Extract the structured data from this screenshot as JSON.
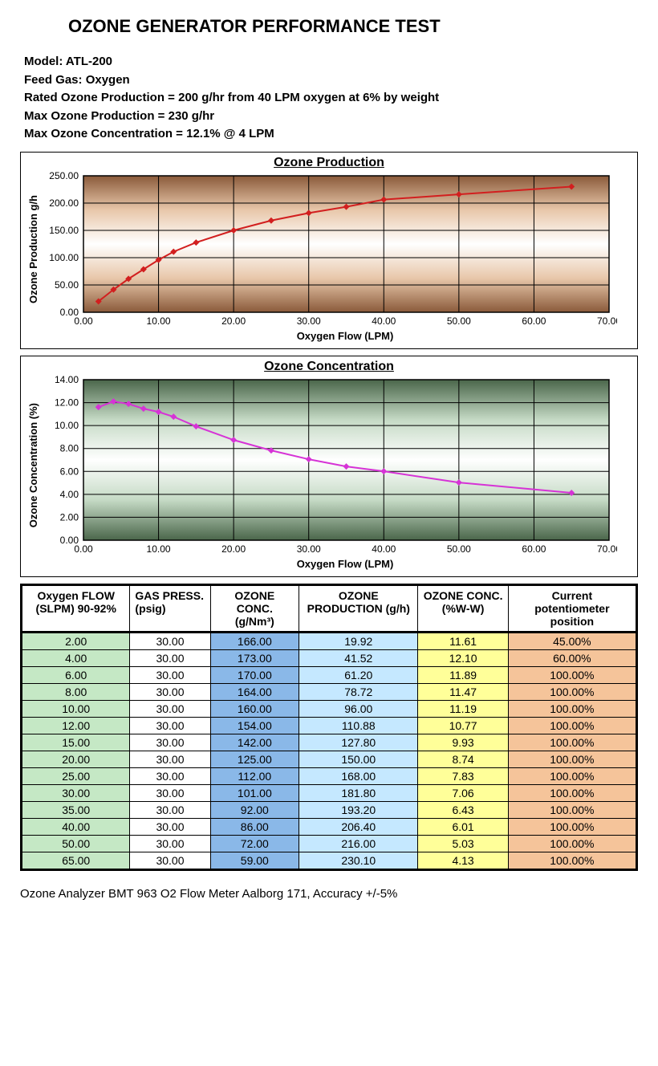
{
  "title": "OZONE GENERATOR PERFORMANCE TEST",
  "meta": {
    "model": "Model: ATL-200",
    "feed_gas": "Feed Gas: Oxygen",
    "rated": "Rated Ozone Production = 200 g/hr from 40 LPM oxygen at 6% by weight",
    "max_prod": "Max Ozone Production = 230 g/hr",
    "max_conc": "Max Ozone Concentration = 12.1% @ 4 LPM"
  },
  "chart_production": {
    "title": "Ozone Production",
    "ylabel": "Ozone Production g/h",
    "xlabel": "Oxygen Flow (LPM)",
    "xlim": [
      0,
      70
    ],
    "xtick_step": 10,
    "ylim": [
      0,
      250
    ],
    "ytick_step": 50,
    "bg_gradient": [
      "#8a5a3a",
      "#e8c7aa",
      "#ffffff",
      "#e8c7aa",
      "#8a5a3a"
    ],
    "line_color": "#d21f1f",
    "marker_color": "#d21f1f",
    "grid_color": "#000000",
    "x": [
      2,
      4,
      6,
      8,
      10,
      12,
      15,
      20,
      25,
      30,
      35,
      40,
      50,
      65
    ],
    "y": [
      19.92,
      41.52,
      61.2,
      78.72,
      96.0,
      110.88,
      127.8,
      150.0,
      168.0,
      181.8,
      193.2,
      206.4,
      216.0,
      230.1
    ]
  },
  "chart_concentration": {
    "title": "Ozone Concentration",
    "ylabel": "Ozone Concentration (%)",
    "xlabel": "Oxygen Flow (LPM)",
    "xlim": [
      0,
      70
    ],
    "xtick_step": 10,
    "ylim": [
      0,
      14
    ],
    "ytick_step": 2,
    "bg_gradient": [
      "#4a664a",
      "#c5dac5",
      "#ffffff",
      "#c5dac5",
      "#4a664a"
    ],
    "line_color": "#d633d6",
    "marker_color": "#d633d6",
    "grid_color": "#000000",
    "x": [
      2,
      4,
      6,
      8,
      10,
      12,
      15,
      20,
      25,
      30,
      35,
      40,
      50,
      65
    ],
    "y": [
      11.61,
      12.1,
      11.89,
      11.47,
      11.19,
      10.77,
      9.93,
      8.74,
      7.83,
      7.06,
      6.43,
      6.01,
      5.03,
      4.13
    ]
  },
  "table": {
    "headers": [
      "Oxygen FLOW (SLPM) 90-92%",
      "GAS PRESS. (psig)",
      "OZONE CONC. (g/Nm³)",
      "OZONE PRODUCTION (g/h)",
      "OZONE CONC. (%W-W)",
      "Current potentiometer position"
    ],
    "col_colors": [
      "#c5e8c5",
      "#ffffff",
      "#8ab8e8",
      "#c5e8ff",
      "#ffff99",
      "#f5c49a"
    ],
    "header_align": [
      "center",
      "left",
      "center",
      "center",
      "center",
      "center"
    ],
    "rows": [
      [
        "2.00",
        "30.00",
        "166.00",
        "19.92",
        "11.61",
        "45.00%"
      ],
      [
        "4.00",
        "30.00",
        "173.00",
        "41.52",
        "12.10",
        "60.00%"
      ],
      [
        "6.00",
        "30.00",
        "170.00",
        "61.20",
        "11.89",
        "100.00%"
      ],
      [
        "8.00",
        "30.00",
        "164.00",
        "78.72",
        "11.47",
        "100.00%"
      ],
      [
        "10.00",
        "30.00",
        "160.00",
        "96.00",
        "11.19",
        "100.00%"
      ],
      [
        "12.00",
        "30.00",
        "154.00",
        "110.88",
        "10.77",
        "100.00%"
      ],
      [
        "15.00",
        "30.00",
        "142.00",
        "127.80",
        "9.93",
        "100.00%"
      ],
      [
        "20.00",
        "30.00",
        "125.00",
        "150.00",
        "8.74",
        "100.00%"
      ],
      [
        "25.00",
        "30.00",
        "112.00",
        "168.00",
        "7.83",
        "100.00%"
      ],
      [
        "30.00",
        "30.00",
        "101.00",
        "181.80",
        "7.06",
        "100.00%"
      ],
      [
        "35.00",
        "30.00",
        "92.00",
        "193.20",
        "6.43",
        "100.00%"
      ],
      [
        "40.00",
        "30.00",
        "86.00",
        "206.40",
        "6.01",
        "100.00%"
      ],
      [
        "50.00",
        "30.00",
        "72.00",
        "216.00",
        "5.03",
        "100.00%"
      ],
      [
        "65.00",
        "30.00",
        "59.00",
        "230.10",
        "4.13",
        "100.00%"
      ]
    ]
  },
  "footer": "Ozone Analyzer BMT 963 O2 Flow Meter Aalborg 171, Accuracy +/-5%"
}
